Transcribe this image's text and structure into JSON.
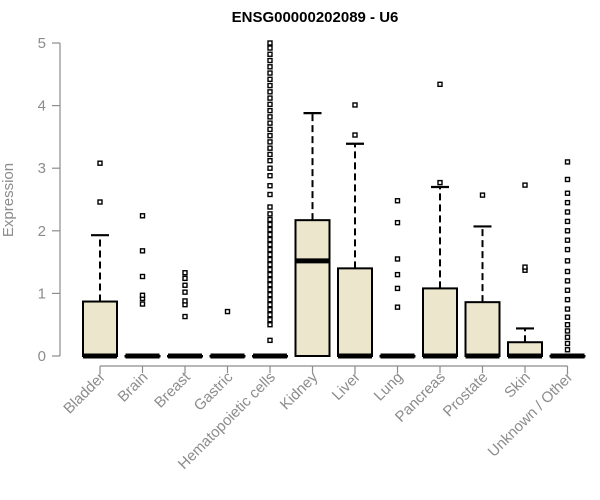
{
  "chart_data": {
    "type": "boxplot",
    "title": "ENSG00000202089 - U6",
    "xlabel": "",
    "ylabel": "Expression",
    "ylim": [
      0,
      5
    ],
    "yticks": [
      "0",
      "1",
      "2",
      "3",
      "4",
      "5"
    ],
    "grid": false,
    "legend": "none",
    "box_fill": "#ece6cc",
    "categories": [
      "Bladder",
      "Brain",
      "Breast",
      "Gastric",
      "Hematopoietic cells",
      "Kidney",
      "Liver",
      "Lung",
      "Pancreas",
      "Prostate",
      "Skin",
      "Unknown / Other"
    ],
    "boxes": [
      {
        "q1": 0,
        "median": 0,
        "q3": 0.87,
        "whisker_low": 0,
        "whisker_high": 1.93,
        "outliers": [
          2.46,
          3.08
        ]
      },
      {
        "q1": 0,
        "median": 0,
        "q3": 0,
        "whisker_low": 0,
        "whisker_high": 0,
        "outliers": [
          0.83,
          0.92,
          0.97,
          1.27,
          1.68,
          2.24
        ]
      },
      {
        "q1": 0,
        "median": 0,
        "q3": 0,
        "whisker_low": 0,
        "whisker_high": 0,
        "outliers": [
          0.63,
          0.82,
          0.88,
          1.02,
          1.13,
          1.24,
          1.33
        ]
      },
      {
        "q1": 0,
        "median": 0,
        "q3": 0,
        "whisker_low": 0,
        "whisker_high": 0,
        "outliers": [
          0.71
        ]
      },
      {
        "q1": 0,
        "median": 0,
        "q3": 0,
        "whisker_low": 0,
        "whisker_high": 0,
        "outliers": [
          0.25,
          0.5,
          0.58,
          0.66,
          0.74,
          0.82,
          0.9,
          0.98,
          1.06,
          1.14,
          1.22,
          1.3,
          1.38,
          1.46,
          1.54,
          1.62,
          1.7,
          1.78,
          1.86,
          1.94,
          2.02,
          2.1,
          2.18,
          2.27,
          2.38,
          2.58,
          2.72,
          2.88,
          3.0,
          3.12,
          3.22,
          3.32,
          3.42,
          3.52,
          3.62,
          3.72,
          3.82,
          3.92,
          4.02,
          4.12,
          4.22,
          4.32,
          4.42,
          4.52,
          4.62,
          4.72,
          4.82,
          4.92,
          5.0
        ]
      },
      {
        "q1": 0,
        "median": 1.52,
        "q3": 2.17,
        "whisker_low": 0,
        "whisker_high": 3.88,
        "outliers": []
      },
      {
        "q1": 0,
        "median": 0,
        "q3": 1.4,
        "whisker_low": 0,
        "whisker_high": 3.39,
        "outliers": [
          3.53,
          4.01
        ]
      },
      {
        "q1": 0,
        "median": 0,
        "q3": 0,
        "whisker_low": 0,
        "whisker_high": 0,
        "outliers": [
          0.78,
          1.08,
          1.3,
          1.55,
          2.13,
          2.48
        ]
      },
      {
        "q1": 0,
        "median": 0,
        "q3": 1.08,
        "whisker_low": 0,
        "whisker_high": 2.7,
        "outliers": [
          2.77,
          4.34
        ]
      },
      {
        "q1": 0,
        "median": 0,
        "q3": 0.86,
        "whisker_low": 0,
        "whisker_high": 2.07,
        "outliers": [
          2.57
        ]
      },
      {
        "q1": 0,
        "median": 0,
        "q3": 0.22,
        "whisker_low": 0,
        "whisker_high": 0.44,
        "outliers": [
          1.37,
          1.42,
          2.73
        ]
      },
      {
        "q1": 0,
        "median": 0,
        "q3": 0,
        "whisker_low": 0,
        "whisker_high": 0,
        "outliers": [
          0.1,
          0.2,
          0.3,
          0.4,
          0.5,
          0.62,
          0.75,
          0.9,
          1.05,
          1.2,
          1.35,
          1.52,
          1.7,
          1.85,
          2.0,
          2.15,
          2.3,
          2.45,
          2.6,
          2.82,
          3.1
        ]
      }
    ]
  }
}
